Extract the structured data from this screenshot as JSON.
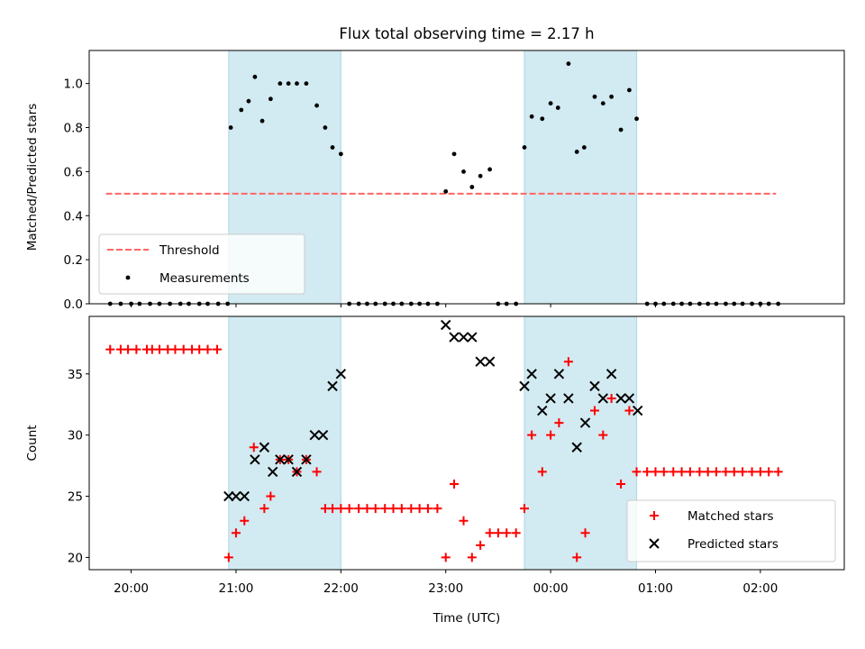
{
  "chart_data": {
    "title": "Flux total observing time = 2.17 h",
    "xlabel": "Time (UTC)",
    "x_ticks": [
      "20:00",
      "21:00",
      "22:00",
      "23:00",
      "00:00",
      "01:00",
      "02:00"
    ],
    "x_tick_hours": [
      20,
      21,
      22,
      23,
      24,
      25,
      26
    ],
    "xlim_hours": [
      19.6,
      26.8
    ],
    "shaded_intervals_hours": [
      [
        20.93,
        22.0
      ],
      [
        23.75,
        24.82
      ]
    ],
    "colors": {
      "shade": "#add8e6",
      "threshold": "#ff6666",
      "matched": "#ff0000",
      "predicted": "#000000",
      "measurements": "#000000"
    },
    "panels": [
      {
        "type": "scatter",
        "ylabel": "Matched/Predicted stars",
        "ylim": [
          0,
          1.15
        ],
        "y_ticks": [
          "0.0",
          "0.2",
          "0.4",
          "0.6",
          "0.8",
          "1.0"
        ],
        "y_tick_values": [
          0,
          0.2,
          0.4,
          0.6,
          0.8,
          1.0
        ],
        "legend_position": "lower-left",
        "threshold": {
          "name": "Threshold",
          "value": 0.5,
          "x_range_hours": [
            19.76,
            26.15
          ]
        },
        "series": [
          {
            "name": "Measurements",
            "x": [
              19.8,
              19.9,
              20.0,
              20.08,
              20.18,
              20.27,
              20.37,
              20.47,
              20.55,
              20.65,
              20.73,
              20.83,
              20.92,
              20.95,
              21.05,
              21.12,
              21.18,
              21.25,
              21.33,
              21.42,
              21.5,
              21.58,
              21.67,
              21.77,
              21.85,
              21.92,
              22.0,
              22.08,
              22.17,
              22.25,
              22.33,
              22.42,
              22.5,
              22.58,
              22.67,
              22.75,
              22.83,
              22.92,
              23.0,
              23.08,
              23.17,
              23.25,
              23.33,
              23.42,
              23.5,
              23.58,
              23.67,
              23.75,
              23.82,
              23.92,
              24.0,
              24.07,
              24.17,
              24.25,
              24.32,
              24.42,
              24.5,
              24.58,
              24.67,
              24.75,
              24.82,
              24.92,
              25.0,
              25.08,
              25.17,
              25.25,
              25.33,
              25.42,
              25.5,
              25.58,
              25.67,
              25.75,
              25.83,
              25.92,
              26.0,
              26.08,
              26.17
            ],
            "y": [
              0,
              0,
              0,
              0,
              0,
              0,
              0,
              0,
              0,
              0,
              0,
              0,
              0,
              0.8,
              0.88,
              0.92,
              1.03,
              0.83,
              0.93,
              1.0,
              1.0,
              1.0,
              1.0,
              0.9,
              0.8,
              0.71,
              0.68,
              0,
              0,
              0,
              0,
              0,
              0,
              0,
              0,
              0,
              0,
              0,
              0.51,
              0.68,
              0.6,
              0.53,
              0.58,
              0.61,
              0,
              0,
              0,
              0.71,
              0.85,
              0.84,
              0.91,
              0.89,
              1.09,
              0.69,
              0.71,
              0.94,
              0.91,
              0.94,
              0.79,
              0.97,
              0.84,
              0,
              0,
              0,
              0,
              0,
              0,
              0,
              0,
              0,
              0,
              0,
              0,
              0,
              0,
              0,
              0
            ]
          }
        ]
      },
      {
        "type": "scatter",
        "ylabel": "Count",
        "ylim": [
          19,
          39.7
        ],
        "y_ticks": [
          "20",
          "25",
          "30",
          "35"
        ],
        "y_tick_values": [
          20,
          25,
          30,
          35
        ],
        "legend_position": "lower-right",
        "series": [
          {
            "name": "Matched stars",
            "x": [
              19.8,
              19.9,
              19.97,
              20.05,
              20.15,
              20.2,
              20.27,
              20.35,
              20.42,
              20.5,
              20.58,
              20.65,
              20.73,
              20.82,
              20.93,
              21.0,
              21.08,
              21.17,
              21.27,
              21.33,
              21.42,
              21.5,
              21.58,
              21.67,
              21.77,
              21.85,
              21.92,
              22.0,
              22.08,
              22.17,
              22.25,
              22.33,
              22.42,
              22.5,
              22.58,
              22.67,
              22.75,
              22.83,
              22.92,
              23.0,
              23.08,
              23.17,
              23.25,
              23.33,
              23.42,
              23.5,
              23.58,
              23.67,
              23.75,
              23.82,
              23.92,
              24.0,
              24.08,
              24.17,
              24.25,
              24.33,
              24.42,
              24.5,
              24.58,
              24.67,
              24.75,
              24.82,
              24.92,
              25.0,
              25.08,
              25.17,
              25.25,
              25.33,
              25.42,
              25.5,
              25.58,
              25.67,
              25.75,
              25.83,
              25.92,
              26.0,
              26.08,
              26.17
            ],
            "y": [
              37,
              37,
              37,
              37,
              37,
              37,
              37,
              37,
              37,
              37,
              37,
              37,
              37,
              37,
              20,
              22,
              23,
              29,
              24,
              25,
              28,
              28,
              27,
              28,
              27,
              24,
              24,
              24,
              24,
              24,
              24,
              24,
              24,
              24,
              24,
              24,
              24,
              24,
              24,
              20,
              26,
              23,
              20,
              21,
              22,
              22,
              22,
              22,
              24,
              30,
              27,
              30,
              31,
              36,
              20,
              22,
              32,
              30,
              33,
              26,
              32,
              27,
              27,
              27,
              27,
              27,
              27,
              27,
              27,
              27,
              27,
              27,
              27,
              27,
              27,
              27,
              27,
              27
            ]
          },
          {
            "name": "Predicted stars",
            "x": [
              20.93,
              21.0,
              21.08,
              21.18,
              21.27,
              21.35,
              21.42,
              21.5,
              21.58,
              21.67,
              21.75,
              21.83,
              21.92,
              22.0,
              23.0,
              23.08,
              23.17,
              23.25,
              23.33,
              23.42,
              23.75,
              23.82,
              23.92,
              24.0,
              24.08,
              24.17,
              24.25,
              24.33,
              24.42,
              24.5,
              24.58,
              24.67,
              24.75,
              24.83
            ],
            "y": [
              25,
              25,
              25,
              28,
              29,
              27,
              28,
              28,
              27,
              28,
              30,
              30,
              34,
              35,
              39,
              38,
              38,
              38,
              36,
              36,
              34,
              35,
              32,
              33,
              35,
              33,
              29,
              31,
              34,
              33,
              35,
              33,
              33,
              32
            ]
          }
        ]
      }
    ]
  }
}
